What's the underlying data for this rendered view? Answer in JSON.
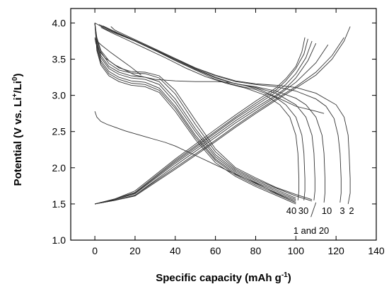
{
  "chart_data": {
    "type": "line",
    "title": "",
    "xlabel": "Specific capacity (mAh g",
    "xlabel_sup": "-1",
    "xlabel_end": ")",
    "ylabel_parts": [
      "Potential (V vs. Li",
      "+",
      "/Li",
      "0",
      ")"
    ],
    "xlim": [
      -12,
      140
    ],
    "ylim": [
      1.0,
      4.2
    ],
    "xticks": [
      0,
      20,
      40,
      60,
      80,
      100,
      120,
      140
    ],
    "yticks": [
      1.0,
      1.5,
      2.0,
      2.5,
      3.0,
      3.5,
      4.0
    ],
    "grid": false,
    "annotations": [
      "40",
      "30",
      "10",
      "3",
      "2",
      "1 and 20"
    ],
    "series": [
      {
        "x": [
          0,
          1,
          3,
          6,
          10,
          15,
          20,
          25,
          30,
          35,
          40,
          50,
          60,
          70,
          80,
          90,
          100
        ],
        "y": [
          2.78,
          2.7,
          2.64,
          2.6,
          2.56,
          2.51,
          2.47,
          2.43,
          2.39,
          2.35,
          2.3,
          2.17,
          2.04,
          1.91,
          1.79,
          1.65,
          1.52
        ]
      },
      {
        "x": [
          0,
          1,
          3,
          7,
          12,
          18,
          25,
          32,
          40,
          50,
          60,
          70,
          80,
          90,
          100,
          108
        ],
        "y": [
          4.0,
          3.8,
          3.62,
          3.48,
          3.38,
          3.33,
          3.32,
          3.27,
          3.07,
          2.66,
          2.26,
          2.0,
          1.86,
          1.73,
          1.63,
          1.56
        ]
      },
      {
        "x": [
          0,
          1,
          3,
          7,
          12,
          18,
          25,
          32,
          40,
          50,
          60,
          70,
          80,
          90,
          100,
          108
        ],
        "y": [
          4.0,
          3.78,
          3.6,
          3.44,
          3.35,
          3.31,
          3.3,
          3.24,
          3.02,
          2.6,
          2.22,
          1.98,
          1.84,
          1.72,
          1.61,
          1.54
        ]
      },
      {
        "x": [
          0,
          1,
          3,
          7,
          12,
          18,
          25,
          32,
          40,
          50,
          60,
          70,
          80,
          90,
          100
        ],
        "y": [
          4.0,
          3.75,
          3.55,
          3.4,
          3.32,
          3.27,
          3.25,
          3.19,
          2.95,
          2.54,
          2.18,
          1.96,
          1.82,
          1.7,
          1.58
        ]
      },
      {
        "x": [
          0,
          1,
          3,
          7,
          12,
          18,
          25,
          32,
          40,
          50,
          60,
          70,
          80,
          90,
          100
        ],
        "y": [
          4.0,
          3.72,
          3.52,
          3.37,
          3.29,
          3.24,
          3.22,
          3.15,
          2.9,
          2.5,
          2.15,
          1.94,
          1.8,
          1.68,
          1.56
        ]
      },
      {
        "x": [
          0,
          1,
          3,
          7,
          12,
          18,
          25,
          32,
          40,
          50,
          60,
          70,
          80,
          90,
          100
        ],
        "y": [
          4.0,
          3.68,
          3.48,
          3.33,
          3.25,
          3.2,
          3.18,
          3.1,
          2.85,
          2.45,
          2.12,
          1.92,
          1.78,
          1.66,
          1.54
        ]
      },
      {
        "x": [
          0,
          1,
          3,
          7,
          12,
          18,
          25,
          32,
          40,
          50,
          60,
          70,
          80,
          90,
          100
        ],
        "y": [
          4.0,
          3.65,
          3.45,
          3.3,
          3.22,
          3.17,
          3.15,
          3.07,
          2.82,
          2.42,
          2.1,
          1.9,
          1.76,
          1.64,
          1.52
        ]
      },
      {
        "x": [
          0,
          1,
          3,
          7,
          12,
          18,
          25,
          32,
          40,
          50,
          60,
          70,
          80,
          90,
          100
        ],
        "y": [
          4.0,
          3.62,
          3.42,
          3.27,
          3.19,
          3.14,
          3.12,
          3.04,
          2.78,
          2.39,
          2.07,
          1.88,
          1.74,
          1.62,
          1.5
        ]
      },
      {
        "x": [
          0,
          10,
          20,
          40,
          60,
          70,
          80,
          90,
          95,
          100,
          103,
          104.5
        ],
        "y": [
          1.5,
          1.57,
          1.68,
          2.12,
          2.53,
          2.73,
          2.92,
          3.1,
          3.23,
          3.4,
          3.6,
          3.8
        ]
      },
      {
        "x": [
          0,
          10,
          20,
          40,
          60,
          70,
          80,
          90,
          95,
          100,
          104,
          106
        ],
        "y": [
          1.5,
          1.57,
          1.66,
          2.1,
          2.5,
          2.7,
          2.89,
          3.07,
          3.2,
          3.37,
          3.57,
          3.78
        ]
      },
      {
        "x": [
          0,
          10,
          20,
          40,
          60,
          70,
          80,
          90,
          95,
          100,
          105,
          108
        ],
        "y": [
          1.5,
          1.56,
          1.65,
          2.08,
          2.48,
          2.68,
          2.86,
          3.04,
          3.15,
          3.3,
          3.52,
          3.75
        ]
      },
      {
        "x": [
          0,
          10,
          20,
          40,
          60,
          70,
          80,
          90,
          95,
          100,
          106,
          110
        ],
        "y": [
          1.5,
          1.56,
          1.64,
          2.06,
          2.45,
          2.65,
          2.83,
          3.0,
          3.1,
          3.24,
          3.48,
          3.72
        ]
      },
      {
        "x": [
          0,
          10,
          20,
          40,
          60,
          70,
          80,
          90,
          100,
          110,
          116
        ],
        "y": [
          1.5,
          1.55,
          1.62,
          2.03,
          2.42,
          2.62,
          2.8,
          2.98,
          3.18,
          3.45,
          3.7
        ]
      },
      {
        "x": [
          0,
          10,
          20,
          40,
          60,
          70,
          80,
          90,
          100,
          110,
          118,
          124
        ],
        "y": [
          1.5,
          1.55,
          1.62,
          2.0,
          2.38,
          2.58,
          2.77,
          2.95,
          3.12,
          3.32,
          3.55,
          3.8
        ]
      },
      {
        "x": [
          0,
          10,
          20,
          40,
          60,
          70,
          80,
          90,
          100,
          110,
          118,
          124,
          127
        ],
        "y": [
          1.5,
          1.55,
          1.61,
          1.98,
          2.36,
          2.56,
          2.75,
          2.93,
          3.1,
          3.28,
          3.5,
          3.75,
          3.95
        ]
      },
      {
        "x": [
          126,
          127,
          127,
          126.5,
          126,
          124,
          120,
          110,
          100,
          90,
          80,
          70,
          60,
          50,
          40,
          30,
          20,
          10,
          5,
          2,
          0
        ],
        "y": [
          1.5,
          1.65,
          1.85,
          2.2,
          2.45,
          2.7,
          2.87,
          3.03,
          3.11,
          3.14,
          3.16,
          3.2,
          3.28,
          3.38,
          3.5,
          3.62,
          3.75,
          3.86,
          3.92,
          3.97,
          4.0
        ]
      },
      {
        "x": [
          122,
          122.5,
          122.5,
          122,
          121,
          119,
          115,
          110,
          100,
          90,
          80,
          70,
          60,
          50,
          40,
          30,
          20,
          10,
          8
        ],
        "y": [
          1.52,
          1.65,
          1.85,
          2.2,
          2.45,
          2.68,
          2.85,
          2.95,
          3.06,
          3.12,
          3.15,
          3.19,
          3.27,
          3.38,
          3.51,
          3.64,
          3.77,
          3.9,
          3.95
        ]
      },
      {
        "x": [
          114,
          114.5,
          114.5,
          114,
          113,
          110,
          105,
          100,
          90,
          80,
          70,
          60,
          50,
          40,
          30,
          20,
          10,
          4
        ],
        "y": [
          1.52,
          1.65,
          1.85,
          2.2,
          2.45,
          2.7,
          2.87,
          2.96,
          3.06,
          3.12,
          3.16,
          3.25,
          3.37,
          3.5,
          3.63,
          3.76,
          3.88,
          3.96
        ]
      },
      {
        "x": [
          109,
          109.5,
          109.5,
          109,
          108,
          105,
          100,
          90,
          80,
          70,
          60,
          50,
          40,
          30,
          20,
          10,
          2
        ],
        "y": [
          1.55,
          1.68,
          1.85,
          2.2,
          2.45,
          2.7,
          2.87,
          3.03,
          3.11,
          3.16,
          3.24,
          3.36,
          3.49,
          3.62,
          3.75,
          3.88,
          3.98
        ]
      },
      {
        "x": [
          104,
          104.5,
          104.5,
          104,
          103,
          100,
          95,
          90,
          80,
          70,
          60,
          50,
          40,
          30,
          20,
          10,
          3
        ],
        "y": [
          1.55,
          1.68,
          1.85,
          2.2,
          2.45,
          2.7,
          2.87,
          2.97,
          3.08,
          3.14,
          3.22,
          3.35,
          3.48,
          3.62,
          3.75,
          3.87,
          3.96
        ]
      },
      {
        "x": [
          101,
          101.5,
          101.5,
          101,
          100,
          97,
          92,
          85,
          75,
          65,
          55,
          45,
          35,
          25,
          15,
          8,
          3
        ],
        "y": [
          1.55,
          1.68,
          1.85,
          2.2,
          2.45,
          2.7,
          2.87,
          3.0,
          3.1,
          3.17,
          3.26,
          3.38,
          3.52,
          3.65,
          3.78,
          3.87,
          3.94
        ]
      },
      {
        "x": [
          0,
          0.5,
          2,
          5,
          10,
          20,
          30,
          40,
          50,
          60,
          67,
          74,
          82,
          90,
          100,
          110,
          114
        ],
        "y": [
          3.8,
          3.72,
          3.62,
          3.52,
          3.42,
          3.28,
          3.22,
          3.2,
          3.19,
          3.19,
          3.18,
          3.14,
          3.08,
          2.98,
          2.85,
          2.78,
          2.75
        ]
      },
      {
        "x": [
          0,
          3,
          8,
          14,
          18,
          23
        ],
        "y": [
          3.78,
          3.7,
          3.59,
          3.47,
          3.39,
          3.28
        ]
      },
      {
        "x": [
          107.5,
          110
        ],
        "y": [
          1.32,
          1.52
        ]
      }
    ]
  }
}
